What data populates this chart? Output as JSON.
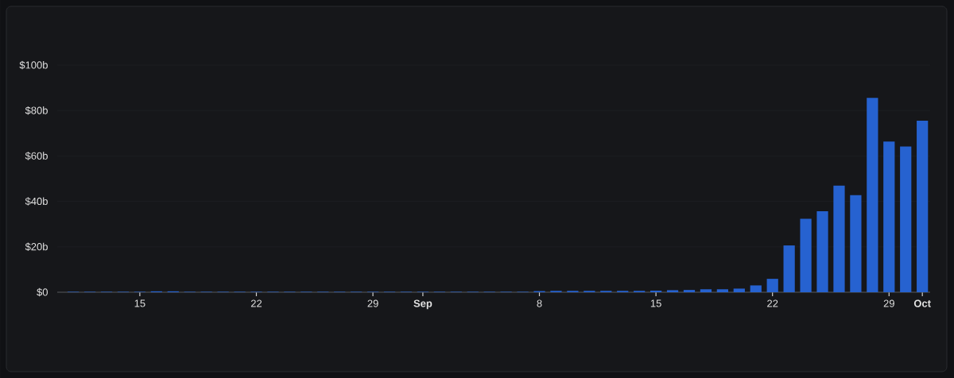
{
  "chart_data": {
    "type": "bar",
    "categories": [
      null,
      null,
      null,
      null,
      "15",
      null,
      null,
      null,
      null,
      null,
      null,
      "22",
      null,
      null,
      null,
      null,
      null,
      null,
      "29",
      null,
      null,
      "Sep",
      null,
      null,
      null,
      null,
      null,
      null,
      "8",
      null,
      null,
      null,
      null,
      null,
      null,
      "15",
      null,
      null,
      null,
      null,
      null,
      null,
      "22",
      null,
      null,
      null,
      null,
      null,
      null,
      "29",
      null,
      "Oct"
    ],
    "values": [
      0.2,
      0.2,
      0.2,
      0.2,
      0.2,
      0.4,
      0.4,
      0.2,
      0.2,
      0.2,
      0.2,
      0.2,
      0.2,
      0.2,
      0.2,
      0.2,
      0.2,
      0.2,
      0.2,
      0.2,
      0.2,
      0.2,
      0.2,
      0.2,
      0.2,
      0.2,
      0.2,
      0.2,
      0.5,
      0.6,
      0.6,
      0.6,
      0.6,
      0.6,
      0.6,
      0.7,
      0.9,
      1.0,
      1.3,
      1.3,
      1.6,
      3.0,
      5.9,
      20.6,
      32.3,
      35.7,
      46.9,
      42.7,
      85.6,
      66.3,
      64.2,
      75.5
    ],
    "color": "#2662d0",
    "ylim": [
      0,
      100
    ],
    "yticks": [
      {
        "value": 0,
        "label": "$0"
      },
      {
        "value": 20,
        "label": "$20b"
      },
      {
        "value": 40,
        "label": "$40b"
      },
      {
        "value": 60,
        "label": "$60b"
      },
      {
        "value": 80,
        "label": "$80b"
      },
      {
        "value": 100,
        "label": "$100b"
      }
    ],
    "grid": "y"
  }
}
